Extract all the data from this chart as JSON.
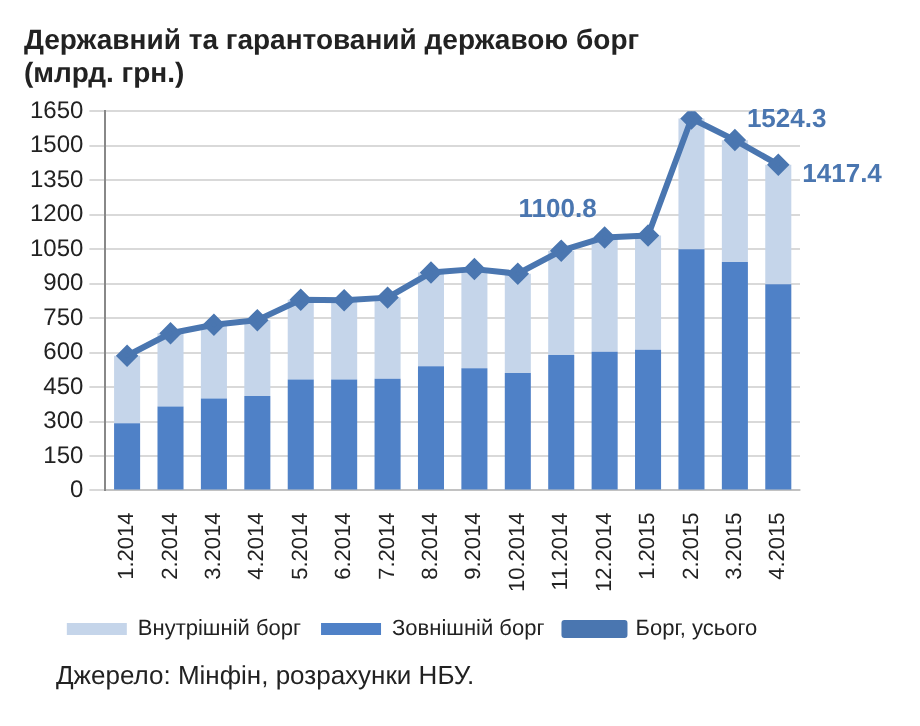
{
  "chart_data": {
    "type": "bar",
    "title": "Державний та гарантований державою борг",
    "subtitle": "(млрд. грн.)",
    "categories": [
      "1.2014",
      "2.2014",
      "3.2014",
      "4.2014",
      "5.2014",
      "6.2014",
      "7.2014",
      "8.2014",
      "9.2014",
      "10.2014",
      "11.2014",
      "12.2014",
      "1.2015",
      "2.2015",
      "3.2015",
      "4.2015"
    ],
    "stacked": true,
    "series": [
      {
        "name": "Зовнішній борг",
        "color": "#4f81c7",
        "values": [
          293,
          365,
          400,
          411,
          483,
          483,
          486,
          540,
          532,
          511,
          589,
          603,
          612,
          1049,
          994,
          897
        ]
      },
      {
        "name": "Внутрішній борг",
        "color": "#c5d5ea",
        "values": [
          293,
          319,
          321,
          330,
          347,
          345,
          353,
          408,
          431,
          432,
          454,
          498,
          497,
          569,
          530,
          520
        ]
      },
      {
        "name": "Борг, усього",
        "type": "line",
        "color": "#4a76b0",
        "marker": "diamond",
        "values": [
          586,
          684,
          721,
          741,
          830,
          828,
          839,
          948,
          963,
          943,
          1043,
          1100.8,
          1109,
          1618,
          1524.3,
          1417.4
        ],
        "value_labels": [
          null,
          null,
          null,
          null,
          null,
          null,
          null,
          null,
          null,
          null,
          null,
          "1100.8",
          null,
          null,
          "1524.3",
          "1417.4"
        ]
      }
    ],
    "ylim": [
      0,
      1650
    ],
    "yticks": [
      0,
      150,
      300,
      450,
      600,
      750,
      900,
      1050,
      1200,
      1350,
      1500,
      1650
    ],
    "grid": "y",
    "legend": "bottom",
    "annotations": [
      "Джерело: Мінфін, розрахунки НБУ."
    ]
  }
}
